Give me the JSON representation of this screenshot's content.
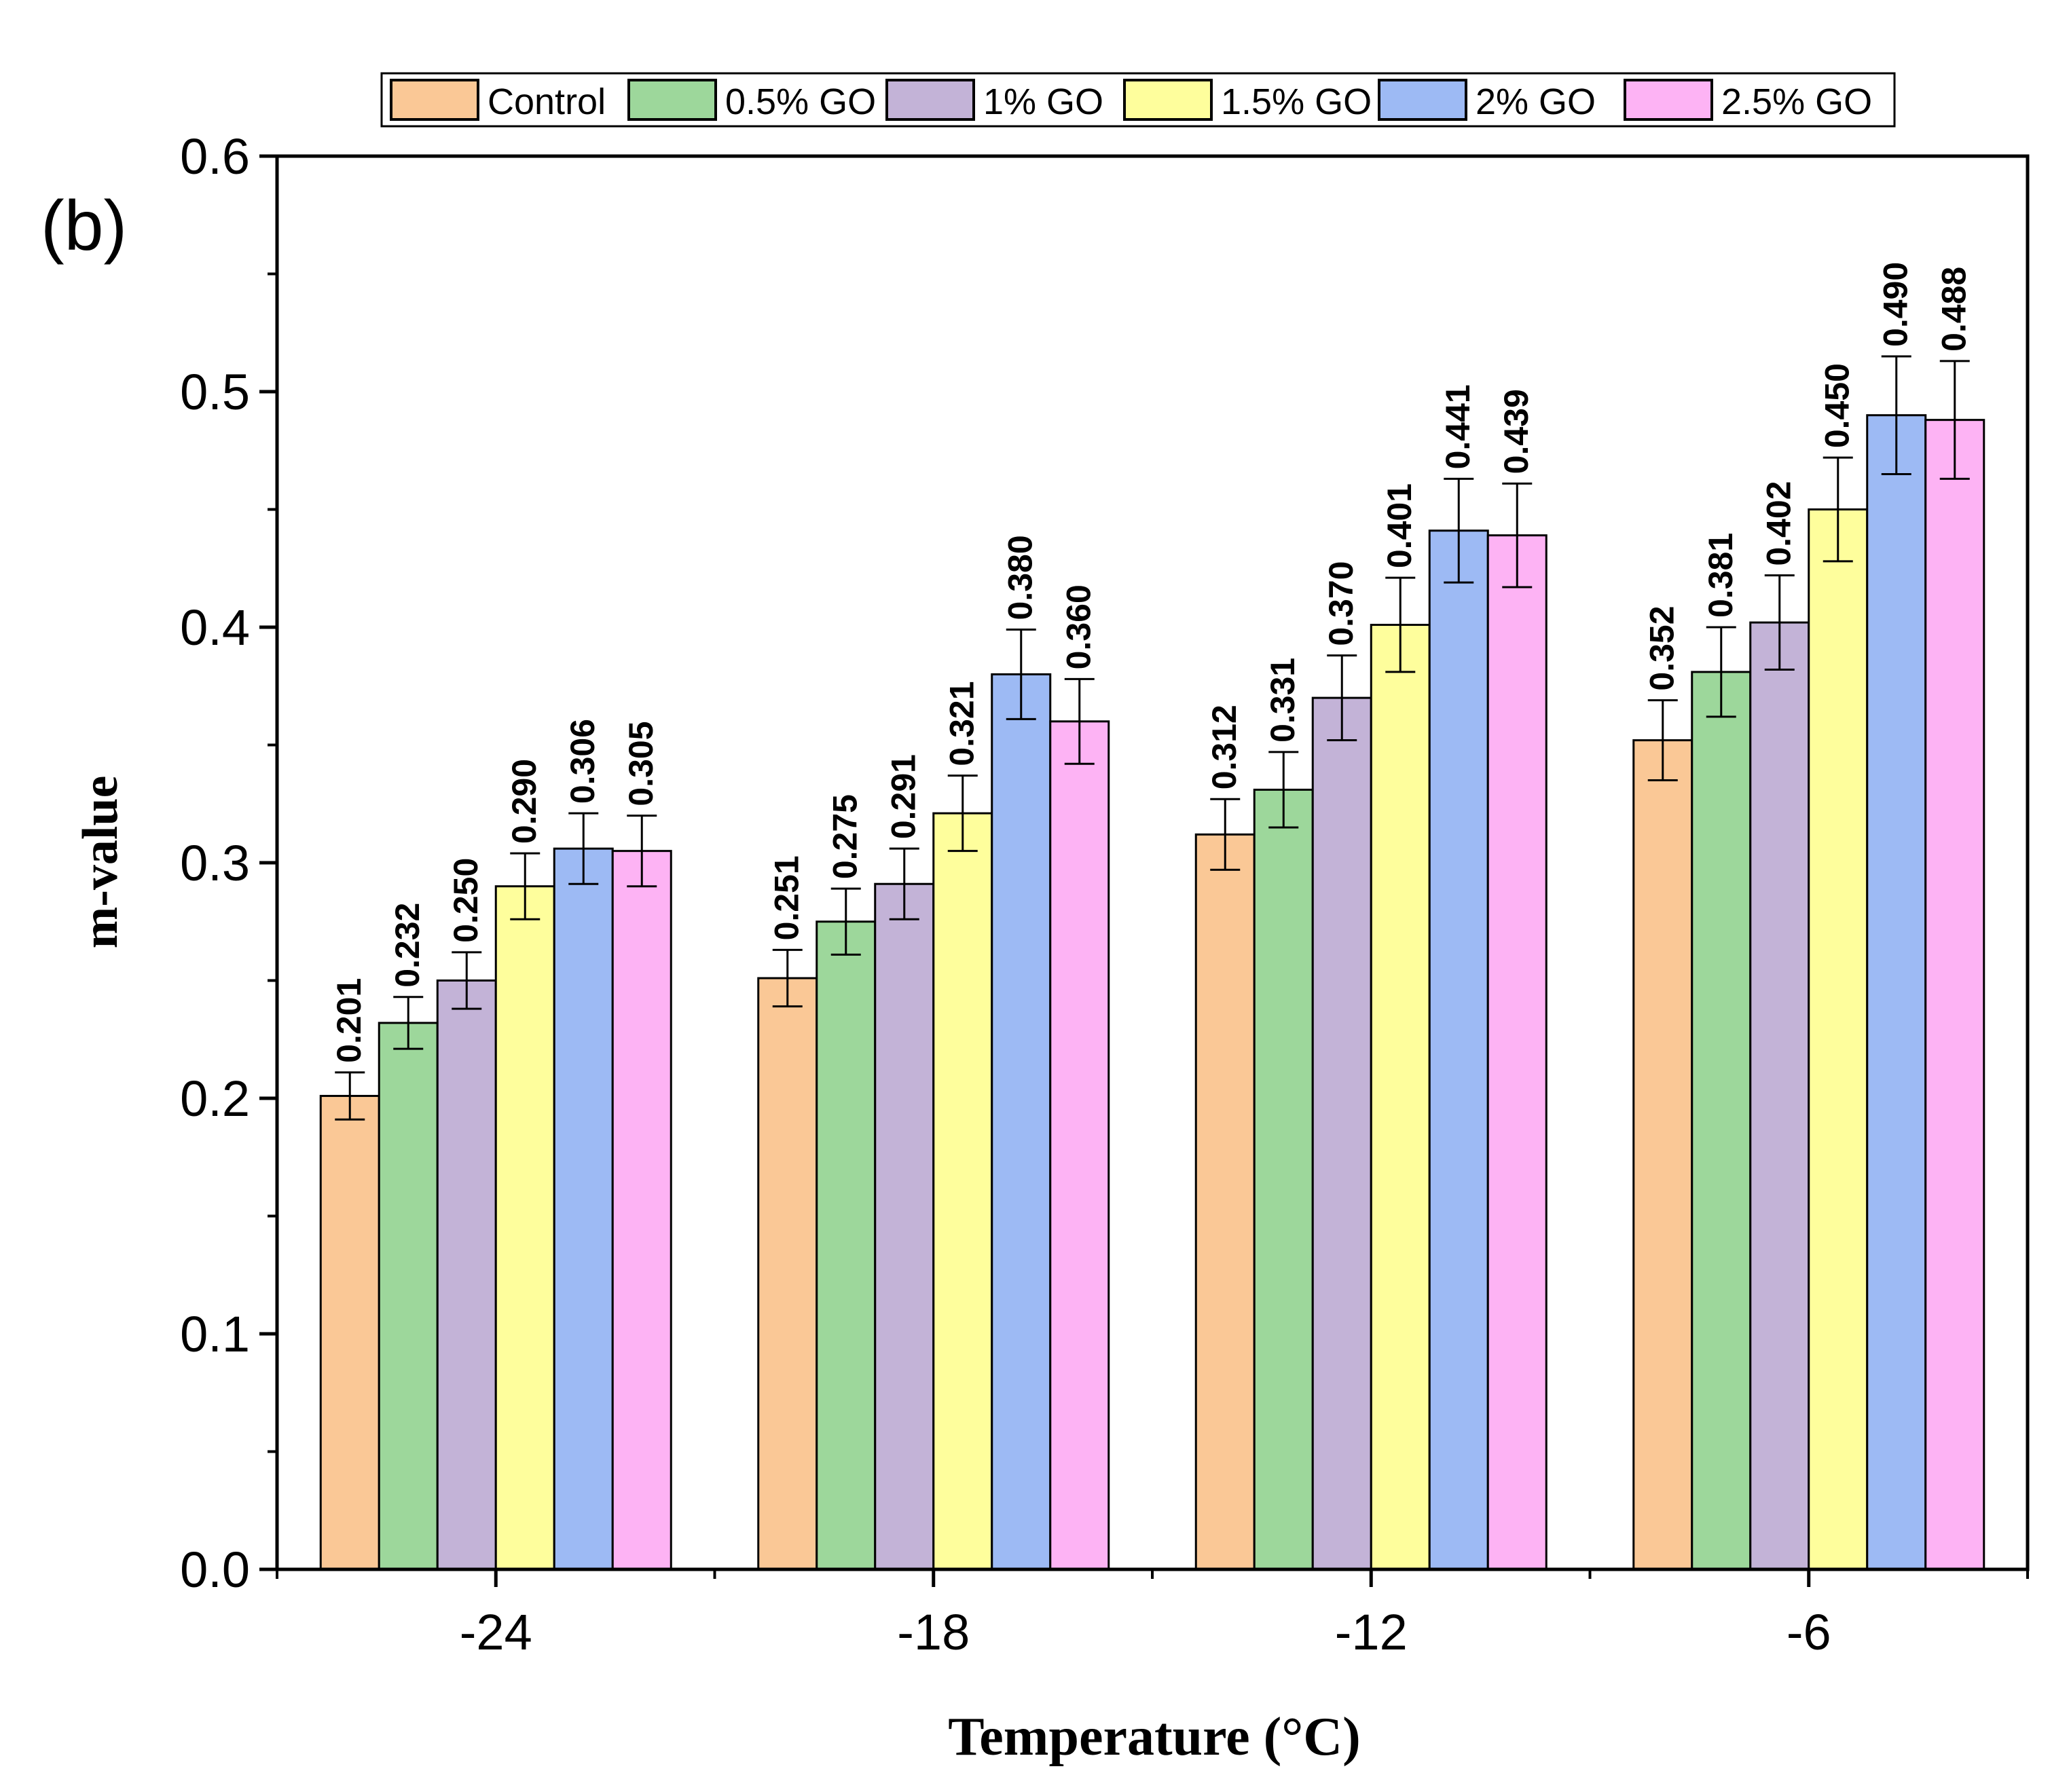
{
  "panel_label": "(b)",
  "chart_data": {
    "type": "bar",
    "title": "",
    "xlabel": "Temperature (°C)",
    "ylabel": "m-value",
    "ylim": [
      0,
      0.6
    ],
    "yticks": [
      "0.0",
      "0.1",
      "0.2",
      "0.3",
      "0.4",
      "0.5",
      "0.6"
    ],
    "categories": [
      "-24",
      "-18",
      "-12",
      "-6"
    ],
    "legend_position": "top-center",
    "series": [
      {
        "name": "Control",
        "color": "#FAC896",
        "values": [
          0.201,
          0.251,
          0.312,
          0.352
        ],
        "labels": [
          "0.201",
          "0.251",
          "0.312",
          "0.352"
        ],
        "errors": [
          0.01,
          0.012,
          0.015,
          0.017
        ]
      },
      {
        "name": "0.5% GO",
        "color": "#9DD79B",
        "values": [
          0.232,
          0.275,
          0.331,
          0.381
        ],
        "labels": [
          "0.232",
          "0.275",
          "0.331",
          "0.381"
        ],
        "errors": [
          0.011,
          0.014,
          0.016,
          0.019
        ]
      },
      {
        "name": "1% GO",
        "color": "#C3B3D7",
        "values": [
          0.25,
          0.291,
          0.37,
          0.402
        ],
        "labels": [
          "0.250",
          "0.291",
          "0.370",
          "0.402"
        ],
        "errors": [
          0.012,
          0.015,
          0.018,
          0.02
        ]
      },
      {
        "name": "1.5% GO",
        "color": "#FEFE9C",
        "values": [
          0.29,
          0.321,
          0.401,
          0.45
        ],
        "labels": [
          "0.290",
          "0.321",
          "0.401",
          "0.450"
        ],
        "errors": [
          0.014,
          0.016,
          0.02,
          0.022
        ]
      },
      {
        "name": "2% GO",
        "color": "#9DBAF4",
        "values": [
          0.306,
          0.38,
          0.441,
          0.49
        ],
        "labels": [
          "0.306",
          "0.380",
          "0.441",
          "0.490"
        ],
        "errors": [
          0.015,
          0.019,
          0.022,
          0.025
        ]
      },
      {
        "name": "2.5% GO",
        "color": "#FDB3F4",
        "values": [
          0.305,
          0.36,
          0.439,
          0.488
        ],
        "labels": [
          "0.305",
          "0.360",
          "0.439",
          "0.488"
        ],
        "errors": [
          0.015,
          0.018,
          0.022,
          0.025
        ]
      }
    ]
  }
}
